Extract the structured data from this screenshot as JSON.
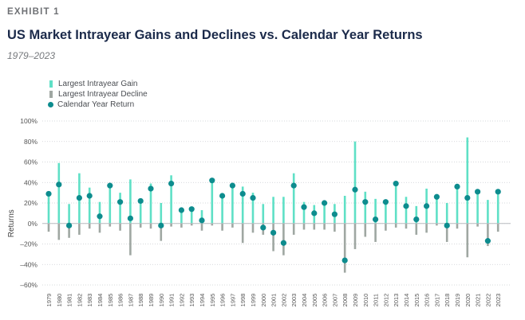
{
  "header": {
    "exhibit": "EXHIBIT 1",
    "title": "US Market Intrayear Gains and Declines vs. Calendar Year Returns",
    "subtitle": "1979–2023"
  },
  "colors": {
    "gain": "#5fe0c6",
    "decline": "#9fa7a2",
    "return": "#0d8c8e"
  },
  "chart_data": {
    "type": "bar",
    "ylabel": "Returns",
    "ylim": [
      -60,
      100
    ],
    "yticks": [
      100,
      80,
      60,
      40,
      20,
      0,
      -20,
      -40,
      -60
    ],
    "ytick_labels": [
      "100%",
      "80%",
      "60%",
      "40%",
      "20%",
      "0%",
      "–20%",
      "–40%",
      "–60%"
    ],
    "grid": "horizontal dotted",
    "legend": [
      "Largest Intrayear Gain",
      "Largest Intrayear Decline",
      "Calendar Year Return"
    ],
    "legend_position": "top-left",
    "categories": [
      "1979",
      "1980",
      "1981",
      "1982",
      "1983",
      "1984",
      "1985",
      "1986",
      "1987",
      "1988",
      "1989",
      "1990",
      "1991",
      "1992",
      "1993",
      "1994",
      "1995",
      "1996",
      "1997",
      "1998",
      "1999",
      "2000",
      "2001",
      "2002",
      "2003",
      "2004",
      "2005",
      "2006",
      "2007",
      "2008",
      "2009",
      "2010",
      "2011",
      "2012",
      "2013",
      "2014",
      "2015",
      "2016",
      "2017",
      "2018",
      "2019",
      "2020",
      "2021",
      "2022",
      "2023"
    ],
    "series": [
      {
        "name": "Largest Intrayear Gain",
        "values": [
          30,
          59,
          19,
          49,
          35,
          21,
          38,
          30,
          43,
          22,
          39,
          20,
          47,
          15,
          15,
          13,
          43,
          27,
          38,
          36,
          30,
          19,
          26,
          26,
          49,
          21,
          18,
          21,
          19,
          27,
          80,
          31,
          24,
          22,
          40,
          26,
          17,
          34,
          27,
          20,
          37,
          84,
          32,
          23,
          32
        ]
      },
      {
        "name": "Largest Intrayear Decline",
        "values": [
          -8,
          -16,
          -14,
          -11,
          -5,
          -9,
          -3,
          -7,
          -31,
          -4,
          -5,
          -17,
          -3,
          -4,
          -2,
          -7,
          -2,
          -7,
          -4,
          -19,
          -9,
          -11,
          -27,
          -31,
          -11,
          -6,
          -6,
          -6,
          -8,
          -48,
          -25,
          -13,
          -18,
          -7,
          -4,
          -5,
          -11,
          -9,
          -2,
          -18,
          -5,
          -33,
          -3,
          -22,
          -8
        ]
      },
      {
        "name": "Calendar Year Return",
        "values": [
          29,
          38,
          -2,
          25,
          27,
          7,
          37,
          21,
          5,
          22,
          34,
          -2,
          39,
          13,
          14,
          3,
          42,
          27,
          37,
          29,
          25,
          -4,
          -9,
          -19,
          37,
          16,
          10,
          20,
          9,
          -36,
          33,
          21,
          4,
          21,
          39,
          17,
          4,
          17,
          26,
          -2,
          36,
          25,
          31,
          -17,
          31
        ]
      }
    ]
  }
}
